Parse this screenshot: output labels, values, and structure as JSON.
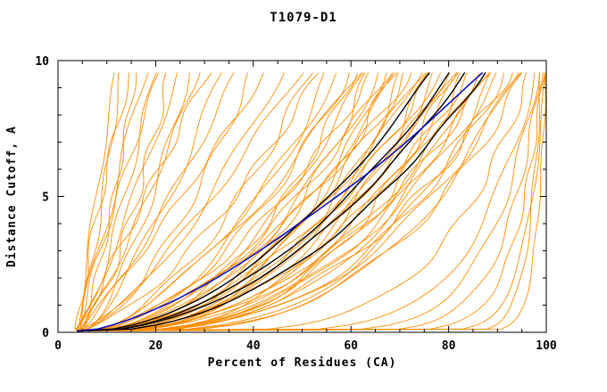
{
  "chart_data": {
    "type": "line",
    "title": "T1079-D1",
    "xlabel": "Percent of Residues (CA)",
    "ylabel": "Distance Cutoff, A",
    "xlim": [
      0,
      100
    ],
    "ylim": [
      0,
      10
    ],
    "x_major_ticks": [
      0,
      20,
      40,
      60,
      80,
      100
    ],
    "x_minor_step": 5,
    "y_major_ticks": [
      0,
      5,
      10
    ],
    "y_minor_step": 1,
    "grid": "off",
    "legend": "none",
    "colors": {
      "orange": "#FF8C00",
      "black": "#000000",
      "blue": "#0000CC",
      "frame": "#000000"
    },
    "x_origin": 4,
    "y_top": 9.6,
    "series_model": "each curve: x(y) = x_origin + (end - x_origin) * (y/9.7)^(1/shape) + amp*sin(freq*y + phase); curves rise from (4,0) to (end,9.6)",
    "orange_curves": [
      [
        12,
        0.9,
        0.4
      ],
      [
        13,
        1.2,
        0.5
      ],
      [
        15,
        0.8,
        0.6
      ],
      [
        16,
        1.4,
        0.5
      ],
      [
        18,
        1.0,
        0.7
      ],
      [
        20,
        1.3,
        0.6
      ],
      [
        21,
        0.9,
        0.5
      ],
      [
        23,
        1.5,
        0.8
      ],
      [
        25,
        1.1,
        0.6
      ],
      [
        27,
        1.6,
        0.7
      ],
      [
        29,
        1.2,
        0.5
      ],
      [
        31,
        1.0,
        0.8
      ],
      [
        34,
        1.4,
        0.9
      ],
      [
        37,
        1.2,
        0.7
      ],
      [
        40,
        1.6,
        0.8
      ],
      [
        43,
        1.1,
        0.6
      ],
      [
        46,
        1.5,
        0.9
      ],
      [
        50,
        1.3,
        0.8
      ],
      [
        52,
        1.8,
        1.0
      ],
      [
        54,
        1.5,
        0.9
      ],
      [
        56,
        2.0,
        1.1
      ],
      [
        58,
        1.7,
        0.8
      ],
      [
        60,
        1.9,
        1.0
      ],
      [
        61,
        2.3,
        0.9
      ],
      [
        62,
        1.6,
        1.1
      ],
      [
        63,
        2.1,
        0.8
      ],
      [
        64,
        2.6,
        1.0
      ],
      [
        65,
        1.8,
        0.9
      ],
      [
        66,
        2.2,
        1.2
      ],
      [
        67,
        2.8,
        0.9
      ],
      [
        68,
        1.9,
        1.0
      ],
      [
        69,
        2.4,
        1.1
      ],
      [
        70,
        2.0,
        0.9
      ],
      [
        71,
        2.9,
        1.0
      ],
      [
        72,
        2.2,
        1.2
      ],
      [
        73,
        1.8,
        0.9
      ],
      [
        74,
        2.5,
        1.0
      ],
      [
        75,
        2.1,
        1.1
      ],
      [
        76,
        3.0,
        0.9
      ],
      [
        77,
        2.3,
        1.0
      ],
      [
        78,
        2.7,
        1.2
      ],
      [
        79,
        2.0,
        0.9
      ],
      [
        80,
        2.4,
        1.0
      ],
      [
        81,
        3.1,
        1.1
      ],
      [
        82,
        2.2,
        0.9
      ],
      [
        83,
        2.6,
        1.0
      ],
      [
        84,
        2.9,
        1.2
      ],
      [
        85,
        2.3,
        0.9
      ],
      [
        86,
        3.2,
        1.0
      ],
      [
        87,
        2.5,
        1.1
      ],
      [
        88,
        2.8,
        0.9
      ],
      [
        89,
        2.4,
        1.0
      ],
      [
        90,
        3.3,
        1.1
      ],
      [
        91,
        2.6,
        0.9
      ],
      [
        92,
        3.0,
        1.0
      ],
      [
        93,
        2.7,
        1.2
      ],
      [
        94,
        3.4,
        0.9
      ],
      [
        95,
        2.9,
        1.0
      ],
      [
        96,
        3.2,
        1.1
      ],
      [
        97,
        5.0,
        0.8
      ],
      [
        98,
        7.0,
        0.7
      ],
      [
        98.5,
        9.0,
        0.6
      ],
      [
        99,
        12,
        0.5
      ],
      [
        99.5,
        16,
        0.4
      ],
      [
        100,
        22,
        0.3
      ],
      [
        99,
        35,
        0.3
      ],
      [
        100,
        45,
        0.2
      ]
    ],
    "black_curves": [
      [
        77,
        1.9,
        0.4
      ],
      [
        81,
        2.0,
        0.35
      ],
      [
        84,
        2.05,
        0.3
      ],
      [
        88,
        2.15,
        0.35
      ]
    ],
    "blue_curve": [
      88,
      1.45,
      0.25
    ]
  }
}
